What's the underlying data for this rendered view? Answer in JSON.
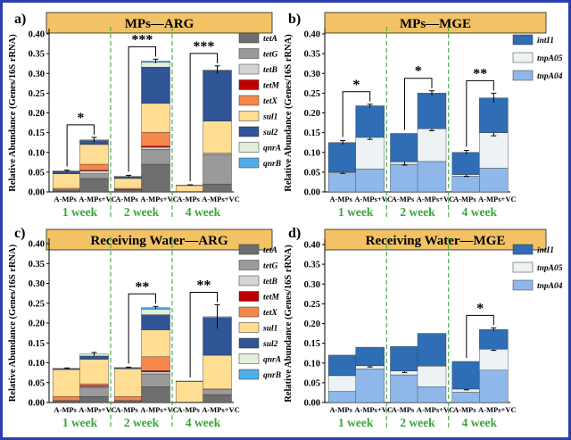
{
  "colors": {
    "frame": "#2b3fb0",
    "title_bg": "#f2c264",
    "week_text": "#3aa53a",
    "divider": "#4caf50",
    "sig": "#000000"
  },
  "gene_colors": {
    "tetA": "#6e6e6e",
    "tetG": "#9a9a9a",
    "tetB": "#d4d4d4",
    "tetM": "#c00000",
    "tetX": "#f4874b",
    "sul1": "#ffdd93",
    "sul2": "#2f5597",
    "qnrA": "#e2efda",
    "qnrB": "#4faee8",
    "intI1": "#2f6db5",
    "tnpA05": "#edf3f5",
    "tnpA04": "#8fb7ea"
  },
  "chart_data": [
    {
      "panel": "a)",
      "title": "MPs—ARG",
      "type": "bar",
      "ylabel": "Relative Abundance (Genes/16S rRNA)",
      "ylim": [
        0,
        0.4
      ],
      "yticks": [
        "0.00",
        "0.05",
        "0.10",
        "0.15",
        "0.20",
        "0.25",
        "0.30",
        "0.35",
        "0.40"
      ],
      "groups": [
        "1 week",
        "2 week",
        "4 week"
      ],
      "categories": [
        "A-MPs",
        "A-MPs+VC",
        "A-MPs",
        "A-MPs+VC",
        "A-MPs",
        "A-MPs+VC"
      ],
      "legend": [
        "tetA",
        "tetG",
        "tetB",
        "tetM",
        "tetX",
        "sul1",
        "sul2",
        "qnrA",
        "qnrB"
      ],
      "series": [
        {
          "name": "tetA",
          "values": [
            0.002,
            0.034,
            0.003,
            0.07,
            0.001,
            0.02
          ]
        },
        {
          "name": "tetG",
          "values": [
            0.002,
            0.012,
            0.002,
            0.038,
            0.0,
            0.075
          ]
        },
        {
          "name": "tetB",
          "values": [
            0.001,
            0.007,
            0.001,
            0.005,
            0.0,
            0.004
          ]
        },
        {
          "name": "tetM",
          "values": [
            0.0,
            0.002,
            0.0,
            0.003,
            0.0,
            0.0
          ]
        },
        {
          "name": "tetX",
          "values": [
            0.004,
            0.015,
            0.003,
            0.035,
            0.0,
            0.0
          ]
        },
        {
          "name": "sul1",
          "values": [
            0.037,
            0.05,
            0.025,
            0.073,
            0.015,
            0.08
          ]
        },
        {
          "name": "sul2",
          "values": [
            0.006,
            0.01,
            0.004,
            0.092,
            0.001,
            0.128
          ]
        },
        {
          "name": "qnrA",
          "values": [
            0.001,
            0.002,
            0.002,
            0.012,
            0.0,
            0.002
          ]
        },
        {
          "name": "qnrB",
          "values": [
            0.0,
            0.0,
            0.0,
            0.003,
            0.0,
            0.0
          ]
        }
      ],
      "errors": [
        0.002,
        0.006,
        0.002,
        0.005,
        0.001,
        0.01
      ],
      "significance": [
        {
          "groupIndex": 0,
          "label": "*"
        },
        {
          "groupIndex": 1,
          "label": "***"
        },
        {
          "groupIndex": 2,
          "label": "***"
        }
      ]
    },
    {
      "panel": "b)",
      "title": "MPs—MGE",
      "type": "bar",
      "ylabel": "Relative Abundance (Genes/16S rRNA)",
      "ylim": [
        0,
        0.4
      ],
      "yticks": [
        "0.00",
        "0.05",
        "0.10",
        "0.15",
        "0.20",
        "0.25",
        "0.30",
        "0.35",
        "0.40"
      ],
      "groups": [
        "1 week",
        "2 week",
        "4 week"
      ],
      "categories": [
        "A-MPs",
        "A-MPs+VC",
        "A-MPs",
        "A-MPs+VC",
        "A-MPs",
        "A-MPs+VC"
      ],
      "legend": [
        "intI1",
        "tnpA05",
        "tnpA04"
      ],
      "series": [
        {
          "name": "tnpA04",
          "values": [
            0.048,
            0.058,
            0.07,
            0.077,
            0.04,
            0.06
          ]
        },
        {
          "name": "tnpA05",
          "values": [
            0.002,
            0.08,
            0.006,
            0.083,
            0.004,
            0.09
          ]
        },
        {
          "name": "intI1",
          "values": [
            0.075,
            0.08,
            0.072,
            0.09,
            0.056,
            0.088
          ]
        }
      ],
      "inner_errors": [
        0.003,
        0.005,
        0.008,
        0.005,
        0.005,
        0.008
      ],
      "errors": [
        0.005,
        0.004,
        0.0,
        0.006,
        0.005,
        0.012
      ],
      "significance": [
        {
          "groupIndex": 0,
          "label": "*"
        },
        {
          "groupIndex": 1,
          "label": "*"
        },
        {
          "groupIndex": 2,
          "label": "**"
        }
      ]
    },
    {
      "panel": "c)",
      "title": "Receiving Water—ARG",
      "type": "bar",
      "ylabel": "Relative Abundance (Genes/16S rRNA)",
      "ylim": [
        0,
        0.4
      ],
      "yticks": [
        "0.00",
        "0.05",
        "0.10",
        "0.15",
        "0.20",
        "0.25",
        "0.30",
        "0.35",
        "0.40"
      ],
      "groups": [
        "1 week",
        "2 week",
        "4 week"
      ],
      "categories": [
        "A-MPs",
        "A-MPs+VC",
        "A-MPs",
        "A-MPs+VC",
        "A-MPs",
        "A-MPs+VC"
      ],
      "legend": [
        "tetA",
        "tetG",
        "tetB",
        "tetM",
        "tetX",
        "sul1",
        "sul2",
        "qnrA",
        "qnrB"
      ],
      "series": [
        {
          "name": "tetA",
          "values": [
            0.002,
            0.015,
            0.002,
            0.04,
            0.001,
            0.02
          ]
        },
        {
          "name": "tetG",
          "values": [
            0.002,
            0.022,
            0.002,
            0.032,
            0.0,
            0.012
          ]
        },
        {
          "name": "tetB",
          "values": [
            0.001,
            0.003,
            0.001,
            0.005,
            0.0,
            0.002
          ]
        },
        {
          "name": "tetM",
          "values": [
            0.0,
            0.002,
            0.0,
            0.003,
            0.0,
            0.0
          ]
        },
        {
          "name": "tetX",
          "values": [
            0.01,
            0.005,
            0.01,
            0.035,
            0.0,
            0.0
          ]
        },
        {
          "name": "sul1",
          "values": [
            0.068,
            0.062,
            0.07,
            0.068,
            0.052,
            0.085
          ]
        },
        {
          "name": "sul2",
          "values": [
            0.002,
            0.008,
            0.002,
            0.038,
            0.001,
            0.095
          ]
        },
        {
          "name": "qnrA",
          "values": [
            0.001,
            0.005,
            0.001,
            0.014,
            0.0,
            0.002
          ]
        },
        {
          "name": "qnrB",
          "values": [
            0.0,
            0.0,
            0.0,
            0.004,
            0.0,
            0.0
          ]
        }
      ],
      "errors": [
        0.001,
        0.004,
        0.001,
        0.003,
        0.0,
        0.03
      ],
      "significance": [
        {
          "groupIndex": 1,
          "label": "**"
        },
        {
          "groupIndex": 2,
          "label": "**"
        }
      ]
    },
    {
      "panel": "d)",
      "title": "Receiving Water—MGE",
      "type": "bar",
      "ylabel": "Relative Abundance (Genes/16S rRNA)",
      "ylim": [
        0,
        0.4
      ],
      "yticks": [
        "0.00",
        "0.05",
        "0.10",
        "0.15",
        "0.20",
        "0.25",
        "0.30",
        "0.35",
        "0.40"
      ],
      "groups": [
        "1 week",
        "2 week",
        "4 week"
      ],
      "categories": [
        "A-MPs",
        "A-MPs+VC",
        "A-MPs",
        "A-MPs+VC",
        "A-MPs",
        "A-MPs+VC"
      ],
      "legend": [
        "intI1",
        "tnpA05",
        "tnpA04"
      ],
      "series": [
        {
          "name": "tnpA04",
          "values": [
            0.028,
            0.085,
            0.07,
            0.04,
            0.026,
            0.082
          ]
        },
        {
          "name": "tnpA05",
          "values": [
            0.04,
            0.008,
            0.01,
            0.052,
            0.008,
            0.053
          ]
        },
        {
          "name": "intI1",
          "values": [
            0.052,
            0.047,
            0.062,
            0.083,
            0.07,
            0.05
          ]
        }
      ],
      "inner_errors": [
        0.0,
        0.003,
        0.004,
        0.0,
        0.002,
        0.003
      ],
      "errors": [
        0.0,
        0.0,
        0.0,
        0.0,
        0.0,
        0.004
      ],
      "significance": [
        {
          "groupIndex": 2,
          "label": "*"
        }
      ]
    }
  ]
}
